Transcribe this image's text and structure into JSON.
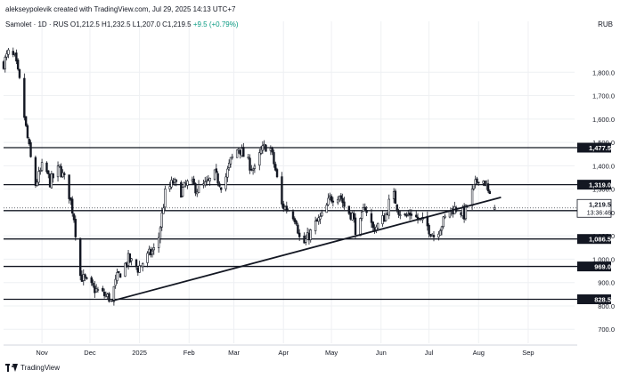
{
  "header": {
    "author_line": "alekseypolevik created with TradingView.com, Jul 29, 2025 14:13 UTC+7",
    "symbol": "Samolet · 1D · RUS",
    "ohlc": "O1,212.5 H1,232.5 L1,207.0 C1,219.5",
    "change": "+9.5 (+0.79%)",
    "currency": "RUB"
  },
  "footer": {
    "brand": "TradingView"
  },
  "colors": {
    "up": "#089981",
    "down": "#f23645",
    "candle": "#131722",
    "line": "#131722",
    "grid": "#eef0f3",
    "text": "#131722"
  },
  "chart_data": {
    "type": "candlestick",
    "ylim": [
      640,
      1980
    ],
    "y_ticks": [
      700,
      800,
      900,
      1000,
      1100,
      1200,
      1300,
      1400,
      1500,
      1600,
      1700,
      1800
    ],
    "y_tick_labels": [
      "700.0",
      "800.0",
      "900.0",
      "1,000.0",
      "1,100.0",
      "1,200.0",
      "1,300.0",
      "1,400.0",
      "1,500.0",
      "1,600.0",
      "1,700.0",
      "1,800.0"
    ],
    "x_range": [
      "2024-10-08",
      "2025-09-30"
    ],
    "x_ticks": [
      {
        "date": "2024-11-01",
        "label": "Nov"
      },
      {
        "date": "2024-12-01",
        "label": "Dec"
      },
      {
        "date": "2025-01-01",
        "label": "2025"
      },
      {
        "date": "2025-02-01",
        "label": "Feb"
      },
      {
        "date": "2025-03-01",
        "label": "Mar"
      },
      {
        "date": "2025-04-01",
        "label": "Apr"
      },
      {
        "date": "2025-05-01",
        "label": "May"
      },
      {
        "date": "2025-06-01",
        "label": "Jun"
      },
      {
        "date": "2025-07-01",
        "label": "Jul"
      },
      {
        "date": "2025-08-01",
        "label": "Aug"
      },
      {
        "date": "2025-09-01",
        "label": "Sep"
      }
    ],
    "horizontal_levels": [
      {
        "value": 1477.5,
        "label": "1,477.5"
      },
      {
        "value": 1319.0,
        "label": "1,319.0"
      },
      {
        "value": 1208.0,
        "label": "1,208.0"
      },
      {
        "value": 1086.5,
        "label": "1,086.5"
      },
      {
        "value": 969.0,
        "label": "969.0"
      },
      {
        "value": 828.5,
        "label": "828.5"
      }
    ],
    "last_price": {
      "value": 1219.5,
      "label": "1,219.5",
      "countdown": "13:36:46"
    },
    "trendline": {
      "start": {
        "date": "2024-12-14",
        "value": 820
      },
      "end": {
        "date": "2025-08-15",
        "value": 1265
      }
    },
    "close_path": [
      [
        "2024-10-08",
        1840
      ],
      [
        "2024-10-11",
        1880
      ],
      [
        "2024-10-15",
        1860
      ],
      [
        "2024-10-18",
        1760
      ],
      [
        "2024-10-22",
        1560
      ],
      [
        "2024-10-25",
        1430
      ],
      [
        "2024-10-28",
        1320
      ],
      [
        "2024-11-02",
        1410
      ],
      [
        "2024-11-06",
        1330
      ],
      [
        "2024-11-12",
        1390
      ],
      [
        "2024-11-17",
        1310
      ],
      [
        "2024-11-21",
        1180
      ],
      [
        "2024-11-25",
        930
      ],
      [
        "2024-12-02",
        880
      ],
      [
        "2024-12-09",
        850
      ],
      [
        "2024-12-14",
        830
      ],
      [
        "2024-12-18",
        920
      ],
      [
        "2024-12-25",
        1000
      ],
      [
        "2024-12-31",
        960
      ],
      [
        "2025-01-07",
        1020
      ],
      [
        "2025-01-12",
        1050
      ],
      [
        "2025-01-17",
        1280
      ],
      [
        "2025-01-22",
        1330
      ],
      [
        "2025-01-27",
        1290
      ],
      [
        "2025-02-01",
        1330
      ],
      [
        "2025-02-06",
        1300
      ],
      [
        "2025-02-12",
        1320
      ],
      [
        "2025-02-17",
        1360
      ],
      [
        "2025-02-22",
        1310
      ],
      [
        "2025-02-27",
        1420
      ],
      [
        "2025-03-04",
        1480
      ],
      [
        "2025-03-09",
        1420
      ],
      [
        "2025-03-14",
        1380
      ],
      [
        "2025-03-18",
        1460
      ],
      [
        "2025-03-23",
        1500
      ],
      [
        "2025-03-27",
        1380
      ],
      [
        "2025-03-31",
        1230
      ],
      [
        "2025-04-05",
        1210
      ],
      [
        "2025-04-09",
        1170
      ],
      [
        "2025-04-12",
        1050
      ],
      [
        "2025-04-16",
        1090
      ],
      [
        "2025-04-21",
        1150
      ],
      [
        "2025-04-26",
        1190
      ],
      [
        "2025-04-30",
        1260
      ],
      [
        "2025-05-06",
        1280
      ],
      [
        "2025-05-10",
        1210
      ],
      [
        "2025-05-14",
        1190
      ],
      [
        "2025-05-17",
        1100
      ],
      [
        "2025-05-22",
        1230
      ],
      [
        "2025-05-27",
        1130
      ],
      [
        "2025-05-31",
        1150
      ],
      [
        "2025-06-04",
        1190
      ],
      [
        "2025-06-08",
        1290
      ],
      [
        "2025-06-12",
        1210
      ],
      [
        "2025-06-16",
        1180
      ],
      [
        "2025-06-20",
        1200
      ],
      [
        "2025-06-24",
        1170
      ],
      [
        "2025-06-29",
        1150
      ],
      [
        "2025-07-04",
        1100
      ],
      [
        "2025-07-09",
        1150
      ],
      [
        "2025-07-14",
        1210
      ],
      [
        "2025-07-19",
        1220
      ],
      [
        "2025-07-23",
        1190
      ],
      [
        "2025-07-27",
        1270
      ],
      [
        "2025-08-01",
        1350
      ],
      [
        "2025-08-05",
        1330
      ],
      [
        "2025-08-08",
        1260
      ],
      [
        "2025-08-11",
        1219.5
      ]
    ]
  }
}
